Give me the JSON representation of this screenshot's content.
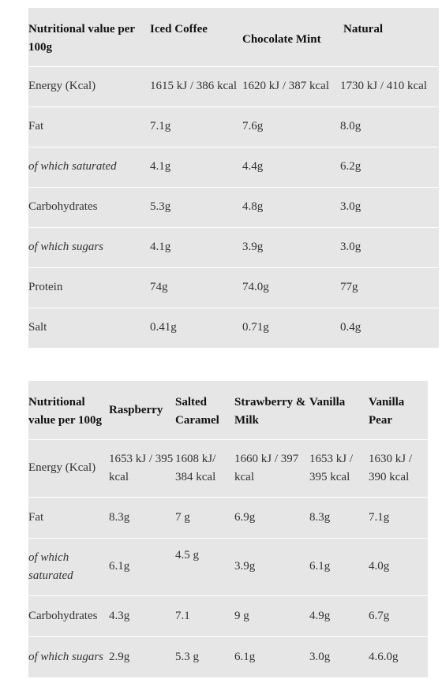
{
  "table1": {
    "headers": [
      "Nutritional value per 100g",
      "Iced Coffee",
      "Chocolate Mint",
      "Natural"
    ],
    "rows": [
      {
        "label": "Energy (Kcal)",
        "values": [
          "1615 kJ / 386 kcal",
          "1620 kJ / 387 kcal",
          "1730 kJ / 410 kcal"
        ]
      },
      {
        "label": "Fat",
        "values": [
          "7.1g",
          "7.6g",
          "8.0g"
        ]
      },
      {
        "label": "of which saturated",
        "values": [
          "4.1g",
          "4.4g",
          "6.2g"
        ]
      },
      {
        "label": "Carbohydrates",
        "values": [
          "5.3g",
          "4.8g",
          "3.0g"
        ]
      },
      {
        "label": "of which sugars",
        "values": [
          "4.1g",
          "3.9g",
          "3.0g"
        ]
      },
      {
        "label": "Protein",
        "values": [
          "74g",
          "74.0g",
          "77g"
        ]
      },
      {
        "label": "Salt",
        "values": [
          "0.41g",
          "0.71g",
          "0.4g"
        ]
      }
    ]
  },
  "table2": {
    "headers": [
      "Nutritional value per 100g",
      "Raspberry",
      "Salted Caramel",
      "Strawberry & Milk",
      "Vanilla",
      "Vanilla Pear"
    ],
    "rows": [
      {
        "label": "Energy (Kcal)",
        "values": [
          "1653 kJ / 395 kcal",
          "1608 kJ/ 384 kcal",
          "1660 kJ / 397 kcal",
          "1653 kJ / 395 kcal",
          "1630 kJ / 390 kcal"
        ]
      },
      {
        "label": "Fat",
        "values": [
          "8.3g",
          "7 g",
          "6.9g",
          "8.3g",
          "7.1g"
        ]
      },
      {
        "label": "of which saturated",
        "values": [
          "6.1g",
          "4.5 g",
          "3.9g",
          "6.1g",
          "4.0g"
        ]
      },
      {
        "label": "Carbohydrates",
        "values": [
          "4.3g",
          "7.1",
          "9 g",
          "4.9g",
          "6.7g"
        ]
      },
      {
        "label": "of which sugars",
        "values": [
          "2.9g",
          "5.3 g",
          "6.1g",
          "3.0g",
          "4.6.0g"
        ]
      }
    ]
  }
}
